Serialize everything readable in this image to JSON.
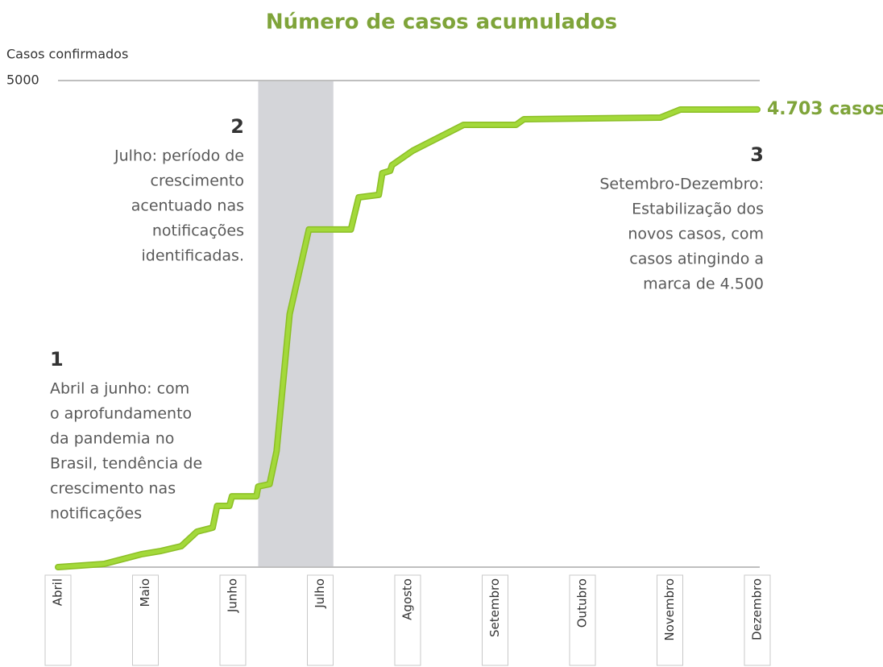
{
  "chart_data": {
    "type": "line",
    "title": "Número de casos acumulados",
    "y_label": "Casos confirmados",
    "ylim": [
      0,
      5000
    ],
    "yticks": [
      5000
    ],
    "xlim": [
      0,
      8
    ],
    "xticks": [
      {
        "value": 0,
        "label": "Abril"
      },
      {
        "value": 1,
        "label": "Maio"
      },
      {
        "value": 2,
        "label": "Junho"
      },
      {
        "value": 3,
        "label": "Julho"
      },
      {
        "value": 4,
        "label": "Agosto"
      },
      {
        "value": 5,
        "label": "Setembro"
      },
      {
        "value": 6,
        "label": "Outubro"
      },
      {
        "value": 7,
        "label": "Novembro"
      },
      {
        "value": 8,
        "label": "Dezembro"
      }
    ],
    "shaded_range": [
      2.29,
      3.15
    ],
    "shade_color": "#d4d5d9",
    "grid": true,
    "series": [
      {
        "color": "#a3d93a",
        "x": [
          0,
          0.53,
          0.95,
          1.18,
          1.41,
          1.59,
          1.77,
          1.82,
          1.96,
          1.99,
          2.27,
          2.29,
          2.42,
          2.5,
          2.65,
          2.87,
          3.35,
          3.44,
          3.67,
          3.71,
          3.8,
          3.82,
          4.06,
          4.64,
          5.24,
          5.33,
          6.89,
          7.12,
          8
        ],
        "values": [
          0,
          33,
          132,
          166,
          215,
          364,
          406,
          629,
          629,
          728,
          728,
          828,
          853,
          1192,
          2599,
          3469,
          3469,
          3800,
          3825,
          4048,
          4073,
          4131,
          4280,
          4545,
          4545,
          4603,
          4619,
          4702,
          4703
        ],
        "end_label": "4.703 casos"
      }
    ],
    "annotations": [
      {
        "number": "1",
        "lines": [
          "Abril a junho: com",
          "o aprofundamento",
          "da pandemia no",
          "Brasil, tendência de",
          "crescimento nas",
          "notificações"
        ]
      },
      {
        "number": "2",
        "lines": [
          "Julho: período de",
          "crescimento",
          "acentuado nas",
          "notificações",
          "identificadas."
        ]
      },
      {
        "number": "3",
        "lines": [
          "Setembro-Dezembro:",
          "Estabilização dos",
          "novos casos, com",
          "casos atingindo a",
          "marca de 4.500"
        ]
      }
    ]
  }
}
